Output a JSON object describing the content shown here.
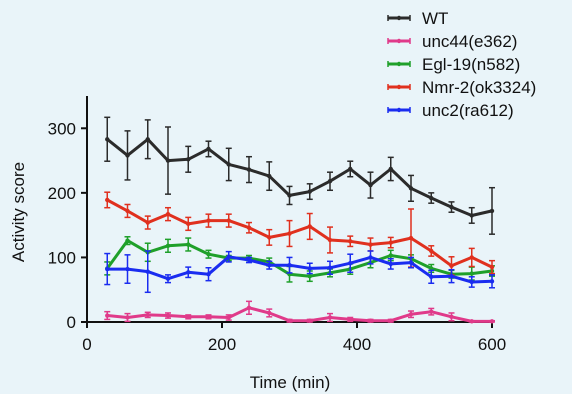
{
  "chart_data": {
    "type": "line",
    "title": "",
    "xlabel": "Time (min)",
    "ylabel": "Activity score",
    "xlim": [
      0,
      600
    ],
    "ylim": [
      0,
      350
    ],
    "xticks": [
      0,
      200,
      400,
      600
    ],
    "yticks": [
      0,
      100,
      200,
      300
    ],
    "grid": false,
    "legend_position": "top-right",
    "series": [
      {
        "name": "WT",
        "color": "#2b2b2b",
        "x": [
          30,
          60,
          90,
          120,
          150,
          180,
          210,
          240,
          270,
          300,
          330,
          360,
          390,
          420,
          450,
          480,
          510,
          540,
          570,
          600
        ],
        "y": [
          283,
          258,
          283,
          250,
          252,
          268,
          244,
          236,
          226,
          196,
          202,
          218,
          237,
          212,
          237,
          207,
          192,
          178,
          165,
          172
        ],
        "err": [
          34,
          38,
          30,
          52,
          20,
          12,
          25,
          20,
          22,
          14,
          12,
          14,
          12,
          20,
          18,
          20,
          8,
          8,
          12,
          36
        ]
      },
      {
        "name": "unc44(e362)",
        "color": "#e03a8a",
        "x": [
          30,
          60,
          90,
          120,
          150,
          180,
          210,
          240,
          270,
          300,
          330,
          360,
          390,
          420,
          450,
          480,
          510,
          540,
          570,
          600
        ],
        "y": [
          10,
          7,
          11,
          10,
          8,
          8,
          7,
          22,
          14,
          2,
          2,
          7,
          4,
          2,
          2,
          12,
          16,
          8,
          1,
          1
        ],
        "err": [
          6,
          6,
          4,
          4,
          3,
          3,
          4,
          10,
          6,
          2,
          2,
          6,
          3,
          2,
          2,
          5,
          5,
          6,
          1,
          1
        ]
      },
      {
        "name": "Egl-19(n582)",
        "color": "#1fa02a",
        "x": [
          30,
          60,
          90,
          120,
          150,
          180,
          210,
          240,
          270,
          300,
          330,
          360,
          390,
          420,
          450,
          480,
          510,
          540,
          570,
          600
        ],
        "y": [
          83,
          126,
          108,
          118,
          120,
          105,
          99,
          99,
          93,
          74,
          71,
          76,
          82,
          92,
          103,
          98,
          83,
          74,
          75,
          79
        ],
        "err": [
          10,
          6,
          14,
          10,
          10,
          6,
          4,
          4,
          6,
          12,
          8,
          6,
          8,
          8,
          8,
          6,
          6,
          6,
          10,
          8
        ]
      },
      {
        "name": "Nmr-2(ok3324)",
        "color": "#e0301e",
        "x": [
          30,
          60,
          90,
          120,
          150,
          180,
          210,
          240,
          270,
          300,
          330,
          360,
          390,
          420,
          450,
          480,
          510,
          540,
          570,
          600
        ],
        "y": [
          189,
          172,
          154,
          167,
          152,
          157,
          157,
          146,
          131,
          137,
          148,
          127,
          125,
          120,
          123,
          130,
          110,
          87,
          100,
          85
        ],
        "err": [
          12,
          10,
          10,
          10,
          10,
          10,
          10,
          8,
          12,
          20,
          20,
          20,
          8,
          10,
          8,
          45,
          8,
          14,
          14,
          10
        ]
      },
      {
        "name": "unc2(ra612)",
        "color": "#1a2cf0",
        "x": [
          30,
          60,
          90,
          120,
          150,
          180,
          210,
          240,
          270,
          300,
          330,
          360,
          390,
          420,
          450,
          480,
          510,
          540,
          570,
          600
        ],
        "y": [
          82,
          82,
          78,
          67,
          77,
          74,
          101,
          96,
          88,
          88,
          83,
          84,
          91,
          100,
          90,
          92,
          70,
          71,
          62,
          63
        ],
        "err": [
          24,
          22,
          32,
          6,
          8,
          10,
          8,
          4,
          6,
          12,
          8,
          10,
          14,
          10,
          8,
          8,
          10,
          10,
          8,
          10
        ]
      }
    ]
  }
}
